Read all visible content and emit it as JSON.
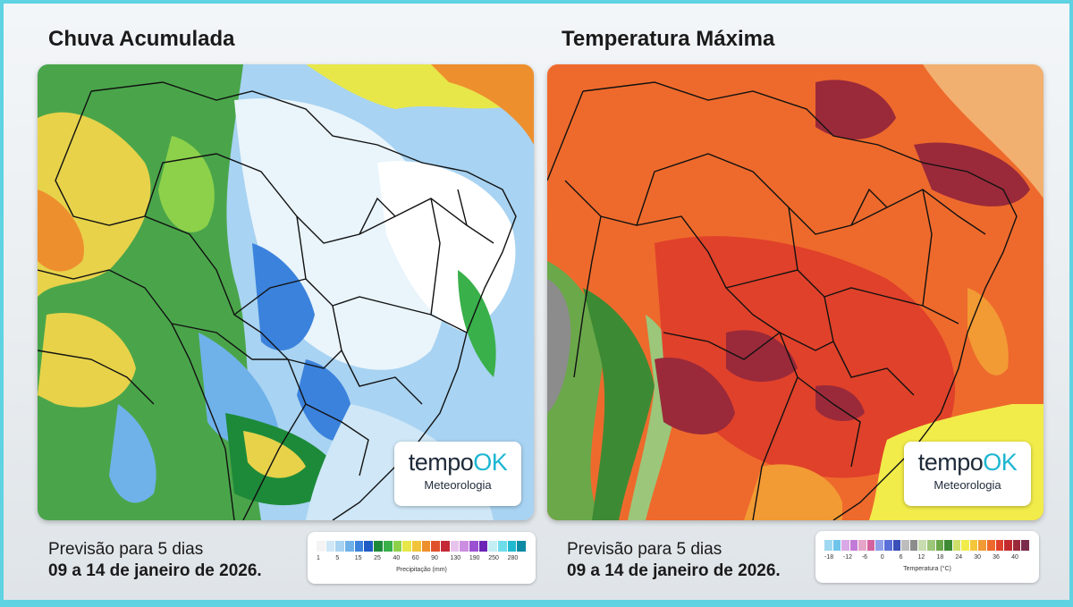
{
  "left_panel": {
    "title": "Chuva Acumulada",
    "caption_line1": "Previsão para 5 dias",
    "caption_line2": "09 a 14 de janeiro de 2026.",
    "legend": {
      "ticks": [
        "1",
        "5",
        "15",
        "25",
        "40",
        "60",
        "90",
        "130",
        "190",
        "250",
        "280"
      ],
      "label": "Precipitação (mm)",
      "colors": [
        "#f4f4f4",
        "#cfe7f7",
        "#a8d3f2",
        "#6fb2ea",
        "#3b82dc",
        "#1f5bc4",
        "#1d8a3a",
        "#39b04a",
        "#8dd14a",
        "#e7e74a",
        "#f2c43a",
        "#ee8f2e",
        "#e0512b",
        "#c42a36",
        "#e8c3ec",
        "#cc8ee0",
        "#9b4fd1",
        "#6b23b5",
        "#c3eef4",
        "#6fdcea",
        "#21b9cf",
        "#0d8aa4"
      ]
    }
  },
  "right_panel": {
    "title": "Temperatura Máxima",
    "caption_line1": "Previsão para 5 dias",
    "caption_line2": "09 a 14 de janeiro de 2026.",
    "legend": {
      "ticks": [
        "-18",
        "-12",
        "-6",
        "0",
        "6",
        "12",
        "18",
        "24",
        "30",
        "36",
        "40"
      ],
      "label": "Temperatura (°C)",
      "colors": [
        "#9fd8f0",
        "#6fc4ea",
        "#d9a8e6",
        "#c27ad8",
        "#e6a5c8",
        "#d4629e",
        "#8fa0e8",
        "#5a6fd8",
        "#3b4fb8",
        "#bdbdbd",
        "#8c8c8c",
        "#c8dcb0",
        "#9cc67a",
        "#6aa84a",
        "#3d8a34",
        "#cfe06a",
        "#f2ec4a",
        "#f4c63a",
        "#f29a34",
        "#ee6a2c",
        "#e0412a",
        "#c22a2e",
        "#9a2a3a",
        "#7a2a4a"
      ]
    }
  },
  "logo": {
    "brand_prefix": "tempo",
    "brand_suffix": "OK",
    "subtitle": "Meteorologia"
  }
}
